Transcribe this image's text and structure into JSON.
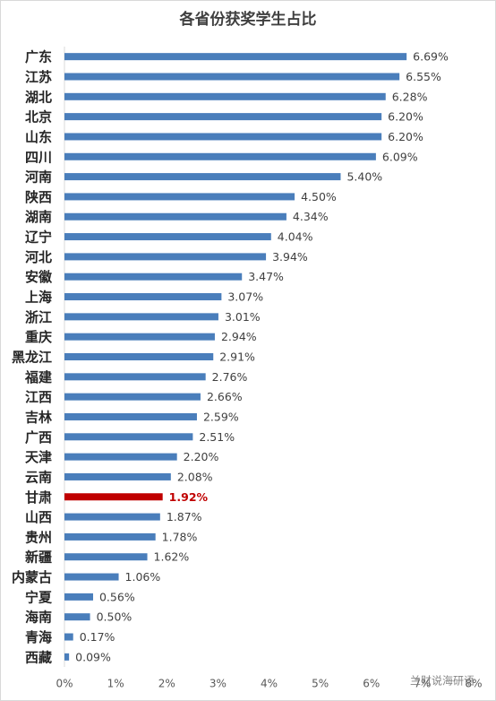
{
  "chart_data": {
    "type": "hbar",
    "title": "各省份获奖学生占比",
    "categories": [
      "广东",
      "江苏",
      "湖北",
      "北京",
      "山东",
      "四川",
      "河南",
      "陕西",
      "湖南",
      "辽宁",
      "河北",
      "安徽",
      "上海",
      "浙江",
      "重庆",
      "黑龙江",
      "福建",
      "江西",
      "吉林",
      "广西",
      "天津",
      "云南",
      "甘肃",
      "山西",
      "贵州",
      "新疆",
      "内蒙古",
      "宁夏",
      "海南",
      "青海",
      "西藏"
    ],
    "values": [
      6.69,
      6.55,
      6.28,
      6.2,
      6.2,
      6.09,
      5.4,
      4.5,
      4.34,
      4.04,
      3.94,
      3.47,
      3.07,
      3.01,
      2.94,
      2.91,
      2.76,
      2.66,
      2.59,
      2.51,
      2.2,
      2.08,
      1.92,
      1.87,
      1.78,
      1.62,
      1.06,
      0.56,
      0.5,
      0.17,
      0.09
    ],
    "value_labels": [
      "6.69%",
      "6.55%",
      "6.28%",
      "6.20%",
      "6.20%",
      "6.09%",
      "5.40%",
      "4.50%",
      "4.34%",
      "4.04%",
      "3.94%",
      "3.47%",
      "3.07%",
      "3.01%",
      "2.94%",
      "2.91%",
      "2.76%",
      "2.66%",
      "2.59%",
      "2.51%",
      "2.20%",
      "2.08%",
      "1.92%",
      "1.87%",
      "1.78%",
      "1.62%",
      "1.06%",
      "0.56%",
      "0.50%",
      "0.17%",
      "0.09%"
    ],
    "colors": [
      "#4a7ebb",
      "#4a7ebb",
      "#4a7ebb",
      "#4a7ebb",
      "#4a7ebb",
      "#4a7ebb",
      "#4a7ebb",
      "#4a7ebb",
      "#4a7ebb",
      "#4a7ebb",
      "#4a7ebb",
      "#4a7ebb",
      "#4a7ebb",
      "#4a7ebb",
      "#4a7ebb",
      "#4a7ebb",
      "#4a7ebb",
      "#4a7ebb",
      "#4a7ebb",
      "#4a7ebb",
      "#4a7ebb",
      "#4a7ebb",
      "#c00000",
      "#4a7ebb",
      "#4a7ebb",
      "#4a7ebb",
      "#4a7ebb",
      "#4a7ebb",
      "#4a7ebb",
      "#4a7ebb",
      "#4a7ebb"
    ],
    "xlim": [
      0,
      8
    ],
    "xticks": [
      {
        "value": 0,
        "label": "0%"
      },
      {
        "value": 1,
        "label": "1%"
      },
      {
        "value": 2,
        "label": "2%"
      },
      {
        "value": 3,
        "label": "3%"
      },
      {
        "value": 4,
        "label": "4%"
      },
      {
        "value": 5,
        "label": "5%"
      },
      {
        "value": 6,
        "label": "6%"
      },
      {
        "value": 7,
        "label": "7%"
      },
      {
        "value": 8,
        "label": "8%"
      }
    ],
    "grid": false,
    "watermark": "兰财说海研语"
  }
}
